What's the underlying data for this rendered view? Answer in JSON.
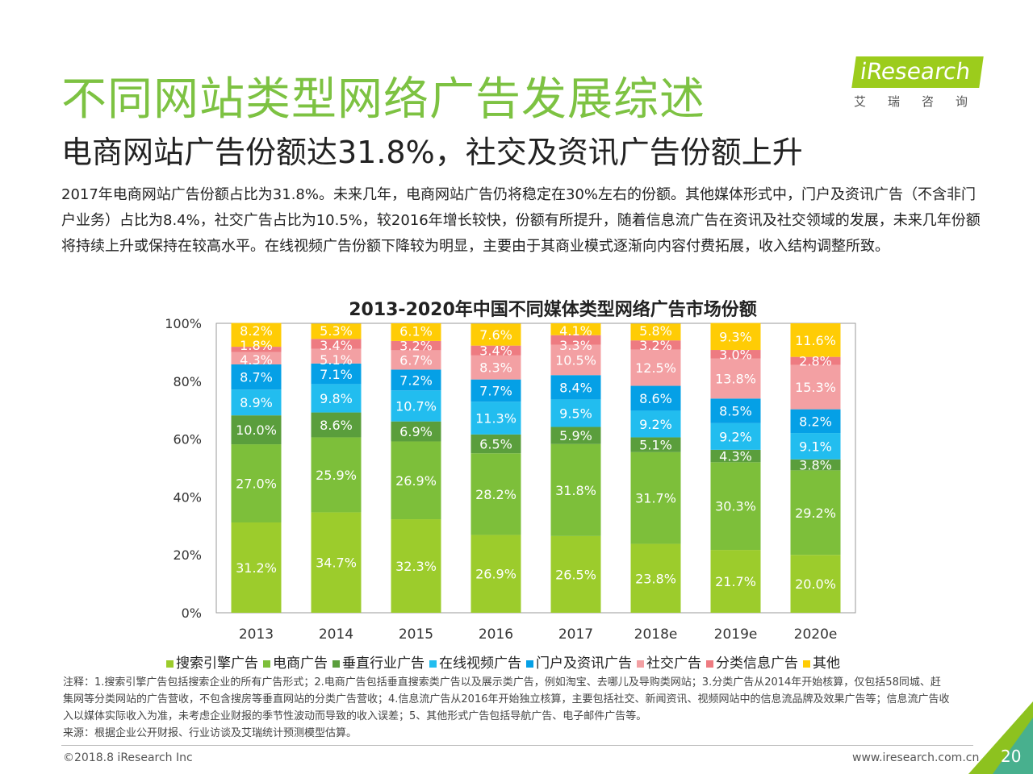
{
  "header": {
    "title": "不同网站类型网络广告发展综述",
    "subtitle": "电商网站广告份额达31.8%，社交及资讯广告份额上升",
    "logo": {
      "brand": "iResearch",
      "cn": "艾瑞咨询"
    }
  },
  "body": "2017年电商网站广告份额占比为31.8%。未来几年，电商网站广告仍将稳定在30%左右的份额。其他媒体形式中，门户及资讯广告（不含非门户业务）占比为8.4%，社交广告占比为10.5%，较2016年增长较快，份额有所提升，随着信息流广告在资讯及社交领域的发展，未来几年份额将持续上升或保持在较高水平。在线视频广告份额下降较为明显，主要由于其商业模式逐渐向内容付费拓展，收入结构调整所致。",
  "chart_data": {
    "type": "bar",
    "stacked": true,
    "title": "2013-2020年中国不同媒体类型网络广告市场份额",
    "categories": [
      "2013",
      "2014",
      "2015",
      "2016",
      "2017",
      "2018e",
      "2019e",
      "2020e"
    ],
    "ylim": [
      0,
      100
    ],
    "yticks": [
      "0%",
      "20%",
      "40%",
      "60%",
      "80%",
      "100%"
    ],
    "legend": "bottom",
    "series": [
      {
        "name": "搜索引擎广告",
        "color": "#9ccc2c",
        "values": [
          31.2,
          34.7,
          32.3,
          26.9,
          26.5,
          23.8,
          21.7,
          20.0
        ]
      },
      {
        "name": "电商广告",
        "color": "#7dbf3a",
        "values": [
          27.0,
          25.9,
          26.9,
          28.2,
          31.8,
          31.7,
          30.3,
          29.2
        ]
      },
      {
        "name": "垂直行业广告",
        "color": "#5a9e3c",
        "values": [
          10.0,
          8.6,
          6.9,
          6.5,
          5.9,
          5.1,
          4.3,
          3.8
        ]
      },
      {
        "name": "在线视频广告",
        "color": "#22bdef",
        "values": [
          8.9,
          9.8,
          10.7,
          11.3,
          9.5,
          9.2,
          9.2,
          9.1
        ]
      },
      {
        "name": "门户及资讯广告",
        "color": "#05a0e6",
        "values": [
          8.7,
          7.1,
          7.2,
          7.7,
          8.4,
          8.6,
          8.5,
          8.2
        ]
      },
      {
        "name": "社交广告",
        "color": "#f3a0a3",
        "values": [
          4.3,
          5.1,
          6.7,
          8.3,
          10.5,
          12.5,
          13.8,
          15.3
        ]
      },
      {
        "name": "分类信息广告",
        "color": "#ee7b81",
        "values": [
          1.8,
          3.4,
          3.2,
          3.4,
          3.3,
          3.2,
          3.0,
          2.8
        ]
      },
      {
        "name": "其他",
        "color": "#ffcc05",
        "values": [
          8.2,
          5.3,
          6.1,
          7.6,
          4.1,
          5.8,
          9.3,
          11.6
        ]
      }
    ]
  },
  "notes": [
    "注释：1.搜索引擎广告包括搜索企业的所有广告形式；2.电商广告包括垂直搜索类广告以及展示类广告，例如淘宝、去哪儿及导购类网站；3.分类广告从2014年开始核算，仅包括58同城、赶集网等分类网站的广告营收，不包含搜房等垂直网站的分类广告营收；4.信息流广告从2016年开始独立核算，主要包括社交、新闻资讯、视频网站中的信息流品牌及效果广告等；信息流广告收入以媒体实际收入为准，未考虑企业财报的季节性波动而导致的收入误差；5、其他形式广告包括导航广告、电子邮件广告等。",
    "来源：根据企业公开财报、行业访谈及艾瑞统计预测模型估算。"
  ],
  "footer": {
    "copyright": "©2018.8 iResearch Inc",
    "site": "www.iresearch.com.cn",
    "page": "20"
  }
}
